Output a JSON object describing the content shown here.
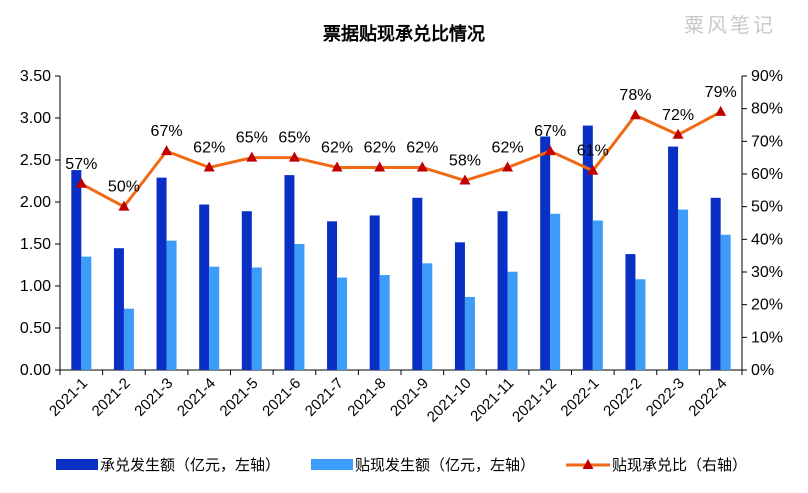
{
  "chart_data": {
    "type": "bar",
    "title": "票据贴现承兑比情况",
    "watermark": "粟风笔记",
    "categories": [
      "2021-1",
      "2021-2",
      "2021-3",
      "2021-4",
      "2021-5",
      "2021-6",
      "2021-7",
      "2021-8",
      "2021-9",
      "2021-10",
      "2021-11",
      "2021-12",
      "2022-1",
      "2022-2",
      "2022-3",
      "2022-4"
    ],
    "series": [
      {
        "name": "承兑发生额（亿元，左轴）",
        "type": "bar",
        "axis": "left",
        "color": "#0a2fc4",
        "values": [
          2.38,
          1.45,
          2.29,
          1.97,
          1.89,
          2.32,
          1.77,
          1.84,
          2.05,
          1.52,
          1.89,
          2.78,
          2.91,
          1.38,
          2.66,
          2.05
        ]
      },
      {
        "name": "贴现发生额（亿元，左轴）",
        "type": "bar",
        "axis": "left",
        "color": "#3d9cf7",
        "values": [
          1.35,
          0.73,
          1.54,
          1.23,
          1.22,
          1.5,
          1.1,
          1.13,
          1.27,
          0.87,
          1.17,
          1.86,
          1.78,
          1.08,
          1.91,
          1.61
        ]
      },
      {
        "name": "贴现承兑比（右轴）",
        "type": "line",
        "axis": "right",
        "color": "#f06a14",
        "marker_color": "#c00000",
        "values": [
          57,
          50,
          67,
          62,
          65,
          65,
          62,
          62,
          62,
          58,
          62,
          67,
          61,
          78,
          72,
          79
        ],
        "labels": [
          "57%",
          "50%",
          "67%",
          "62%",
          "65%",
          "65%",
          "62%",
          "62%",
          "62%",
          "58%",
          "62%",
          "67%",
          "61%",
          "78%",
          "72%",
          "79%"
        ]
      }
    ],
    "y_left": {
      "ylim": [
        0,
        3.5
      ],
      "ticks": [
        "0.00",
        "0.50",
        "1.00",
        "1.50",
        "2.00",
        "2.50",
        "3.00",
        "3.50"
      ]
    },
    "y_right": {
      "ylim": [
        0,
        90
      ],
      "ticks": [
        "0%",
        "10%",
        "20%",
        "30%",
        "40%",
        "50%",
        "60%",
        "70%",
        "80%",
        "90%"
      ]
    },
    "grid": false,
    "legend_position": "bottom"
  }
}
